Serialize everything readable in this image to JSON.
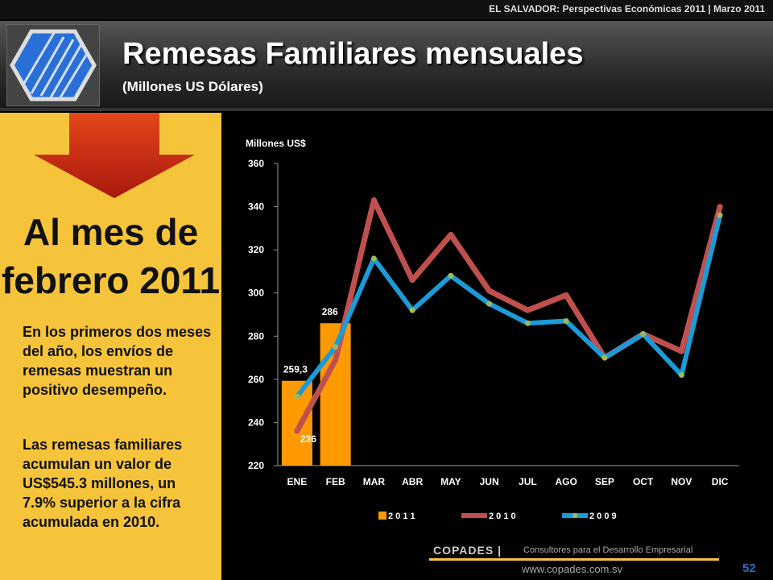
{
  "header": {
    "top_note": "EL SALVADOR: Perspectivas Económicas 2011 | Marzo 2011",
    "title": "Remesas Familiares mensuales",
    "subtitle": "(Millones US Dólares)"
  },
  "left_panel": {
    "heading": "Al mes de febrero 2011",
    "paragraphs": [
      "En los primeros dos meses del año, los envíos de remesas muestran un positivo desempeño.",
      "Las remesas familiares acumulan un valor de US$545.3 millones, un 7.9% superior a la cifra acumulada en 2010."
    ]
  },
  "footer": {
    "brand": "COPADES |",
    "tagline": "Consultores para el Desarrollo Empresarial",
    "url": "www.copades.com.sv",
    "page": "52"
  },
  "chart_data": {
    "type": "bar",
    "y_label": "Millones US$",
    "categories": [
      "ENE",
      "FEB",
      "MAR",
      "ABR",
      "MAY",
      "JUN",
      "JUL",
      "AGO",
      "SEP",
      "OCT",
      "NOV",
      "DIC"
    ],
    "ylim": [
      220,
      360
    ],
    "yticks": [
      220,
      240,
      260,
      280,
      300,
      320,
      340,
      360
    ],
    "grid": false,
    "legend": "bottom",
    "series": [
      {
        "name": "2 0 1 1",
        "type": "bar",
        "color": "#ff9900",
        "values": [
          259.3,
          286,
          null,
          null,
          null,
          null,
          null,
          null,
          null,
          null,
          null,
          null
        ],
        "value_labels": [
          "259,3",
          "286",
          null,
          null,
          null,
          null,
          null,
          null,
          null,
          null,
          null,
          null
        ]
      },
      {
        "name": "2 0 1 0",
        "type": "line",
        "color": "#c0504d",
        "values": [
          236,
          269,
          343,
          306,
          327,
          301,
          292,
          299,
          270,
          281,
          273,
          340
        ],
        "value_labels": [
          "236",
          null,
          null,
          null,
          null,
          null,
          null,
          null,
          null,
          null,
          null,
          null
        ]
      },
      {
        "name": "2 0 0 9",
        "type": "line",
        "color": "#1b9bd7",
        "marker_color": "#9bbb59",
        "values": [
          252,
          275,
          316,
          292,
          308,
          295,
          286,
          287,
          270,
          281,
          262,
          336
        ]
      }
    ]
  }
}
